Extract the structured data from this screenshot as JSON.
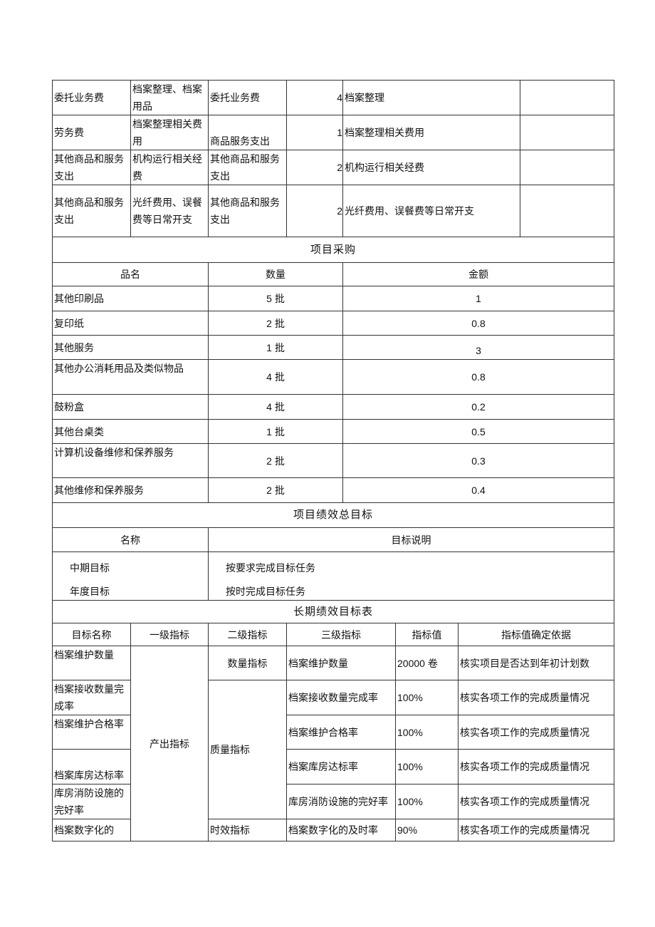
{
  "expense_rows": [
    {
      "category": "委托业务费",
      "content": "档案整理、档案用品",
      "type": "委托业务费",
      "amount": "4",
      "desc": "档案整理",
      "note": ""
    },
    {
      "category": "劳务费",
      "content": "档案整理相关费用",
      "type": "商品服务支出",
      "amount": "1",
      "desc": "档案整理相关费用",
      "note": ""
    },
    {
      "category": "其他商品和服务支出",
      "content": "机构运行相关经费",
      "type": "其他商品和服务支出",
      "amount": "2",
      "desc": "机构运行相关经费",
      "note": ""
    },
    {
      "category": "其他商品和服务支出",
      "content": "光纤费用、误餐费等日常开支",
      "type": "其他商品和服务支出",
      "amount": "2",
      "desc": "光纤费用、误餐费等日常开支",
      "note": ""
    }
  ],
  "procurement": {
    "title": "项目采购",
    "headers": [
      "品名",
      "数量",
      "金额"
    ],
    "rows": [
      [
        "其他印刷品",
        "5 批",
        "1"
      ],
      [
        "复印纸",
        "2 批",
        "0.8"
      ],
      [
        "其他服务",
        "1 批",
        "3"
      ],
      [
        "其他办公消耗用品及类似物品",
        "4 批",
        "0.8"
      ],
      [
        "鼓粉盒",
        "4 批",
        "0.2"
      ],
      [
        "其他台桌类",
        "1 批",
        "0.5"
      ],
      [
        "计算机设备维修和保养服务",
        "2 批",
        "0.3"
      ],
      [
        "其他维修和保养服务",
        "2 批",
        "0.4"
      ]
    ]
  },
  "overall_goal": {
    "title": "项目绩效总目标",
    "headers": [
      "名称",
      "目标说明"
    ],
    "rows": [
      [
        "中期目标",
        "按要求完成目标任务"
      ],
      [
        "年度目标",
        "按时完成目标任务"
      ]
    ]
  },
  "long_term": {
    "title": "长期绩效目标表",
    "headers": [
      "目标名称",
      "一级指标",
      "二级指标",
      "三级指标",
      "指标值",
      "指标值确定依据"
    ],
    "level1": "产出指标",
    "level2": [
      "数量指标",
      "质量指标",
      "时效指标"
    ],
    "rows": [
      {
        "name": "档案维护数量",
        "level3": "档案维护数量",
        "value": "20000 卷",
        "basis": "核实项目是否达到年初计划数"
      },
      {
        "name": "档案接收数量完成率",
        "level3": "档案接收数量完成率",
        "value": "100%",
        "basis": "核实各项工作的完成质量情况"
      },
      {
        "name": "档案维护合格率",
        "level3": "档案维护合格率",
        "value": "100%",
        "basis": "核实各项工作的完成质量情况"
      },
      {
        "name": "档案库房达标率",
        "level3": "档案库房达标率",
        "value": "100%",
        "basis": "核实各项工作的完成质量情况"
      },
      {
        "name": "库房消防设施的完好率",
        "level3": "库房消防设施的完好率",
        "value": "100%",
        "basis": "核实各项工作的完成质量情况"
      },
      {
        "name": "档案数字化的",
        "level3": "档案数字化的及时率",
        "value": "90%",
        "basis": "核实各项工作的完成质量情况"
      }
    ]
  }
}
